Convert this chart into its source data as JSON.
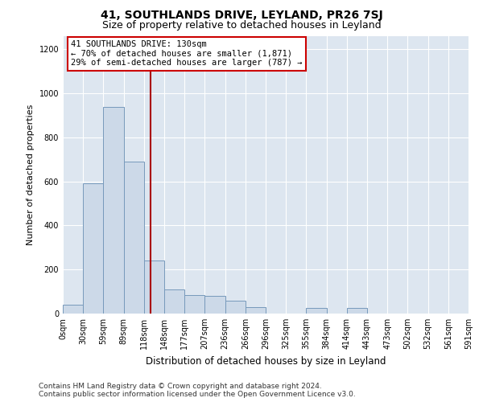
{
  "title": "41, SOUTHLANDS DRIVE, LEYLAND, PR26 7SJ",
  "subtitle": "Size of property relative to detached houses in Leyland",
  "xlabel": "Distribution of detached houses by size in Leyland",
  "ylabel": "Number of detached properties",
  "bin_labels": [
    "0sqm",
    "30sqm",
    "59sqm",
    "89sqm",
    "118sqm",
    "148sqm",
    "177sqm",
    "207sqm",
    "236sqm",
    "266sqm",
    "296sqm",
    "325sqm",
    "355sqm",
    "384sqm",
    "414sqm",
    "443sqm",
    "473sqm",
    "502sqm",
    "532sqm",
    "561sqm",
    "591sqm"
  ],
  "bar_heights": [
    40,
    590,
    940,
    690,
    240,
    110,
    85,
    80,
    60,
    30,
    0,
    0,
    25,
    0,
    25,
    0,
    0,
    0,
    0,
    0
  ],
  "bar_color": "#ccd9e8",
  "bar_edge_color": "#7799bb",
  "property_line_x": 4.33,
  "property_line_color": "#aa0000",
  "annotation_text": "41 SOUTHLANDS DRIVE: 130sqm\n← 70% of detached houses are smaller (1,871)\n29% of semi-detached houses are larger (787) →",
  "annotation_box_color": "#ffffff",
  "annotation_box_edge": "#cc0000",
  "ylim": [
    0,
    1260
  ],
  "yticks": [
    0,
    200,
    400,
    600,
    800,
    1000,
    1200
  ],
  "plot_background": "#dde6f0",
  "grid_color": "#ffffff",
  "footer_line1": "Contains HM Land Registry data © Crown copyright and database right 2024.",
  "footer_line2": "Contains public sector information licensed under the Open Government Licence v3.0.",
  "title_fontsize": 10,
  "subtitle_fontsize": 9,
  "xlabel_fontsize": 8.5,
  "ylabel_fontsize": 8,
  "tick_fontsize": 7,
  "annotation_fontsize": 7.5,
  "footer_fontsize": 6.5
}
